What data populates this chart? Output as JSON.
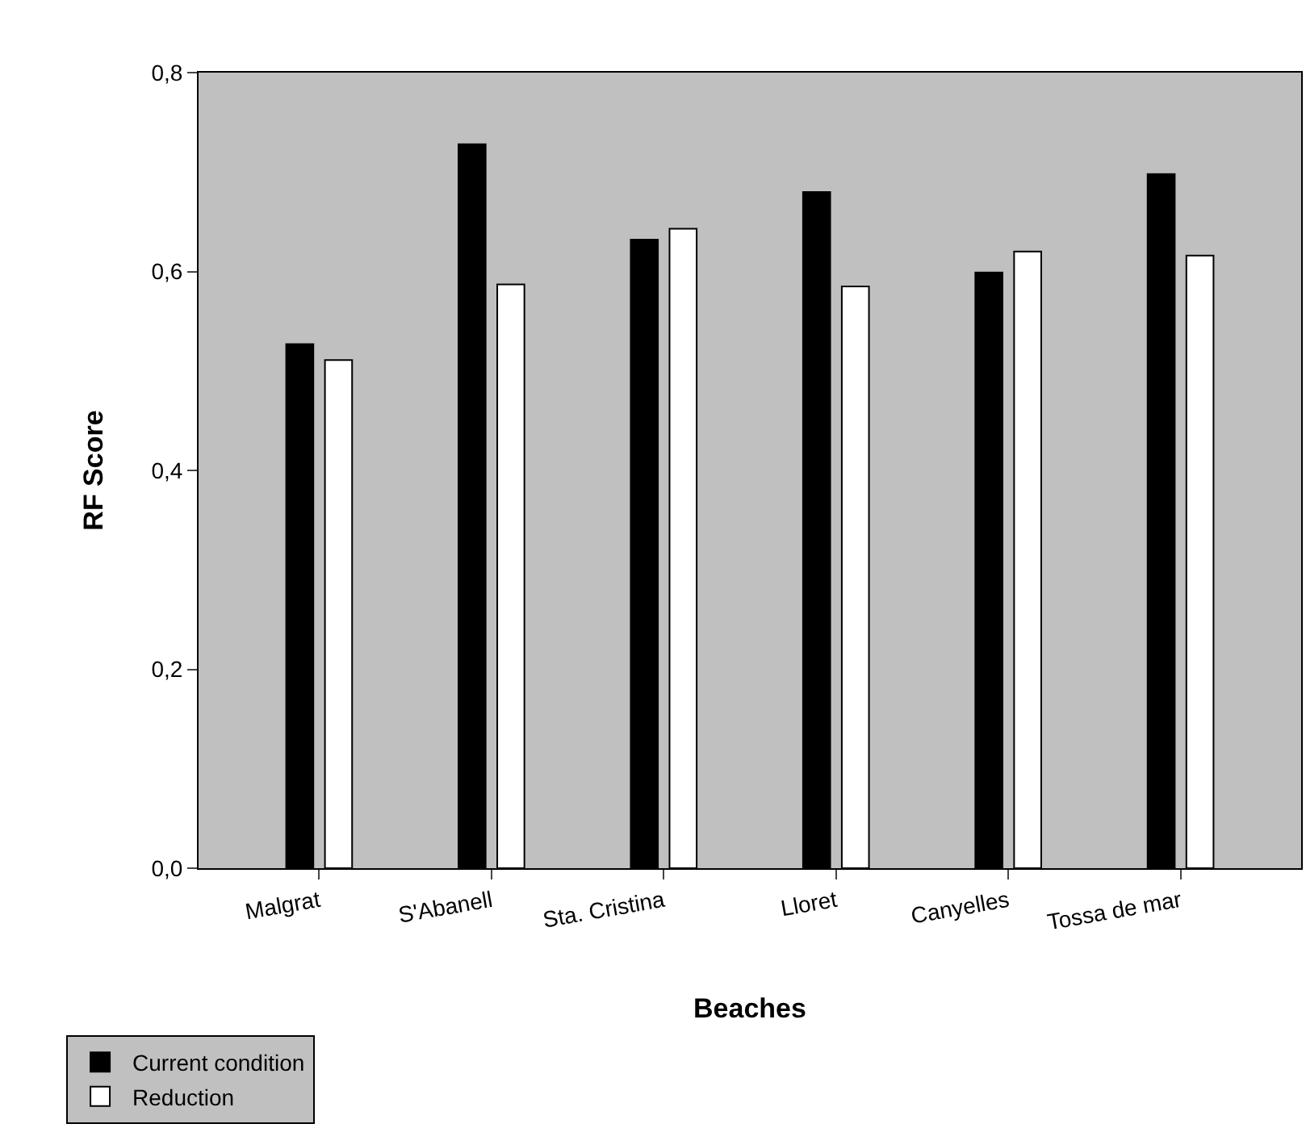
{
  "chart_data": {
    "type": "bar",
    "xlabel": "Beaches",
    "ylabel": "RF Score",
    "categories": [
      "Malgrat",
      "S'Abanell",
      "Sta. Cristina",
      "Lloret",
      "Canyelles",
      "Tossa de mar"
    ],
    "series": [
      {
        "name": "Current condition",
        "color": "#000000",
        "values": [
          0.527,
          0.728,
          0.632,
          0.68,
          0.599,
          0.698
        ]
      },
      {
        "name": "Reduction",
        "color": "#ffffff",
        "values": [
          0.511,
          0.587,
          0.643,
          0.585,
          0.62,
          0.616
        ]
      }
    ],
    "ylim": [
      0,
      0.8
    ],
    "yticks": [
      {
        "value": 0,
        "label": "0,0"
      },
      {
        "value": 0.2,
        "label": "0,2"
      },
      {
        "value": 0.4,
        "label": "0,4"
      },
      {
        "value": 0.6,
        "label": "0,6"
      },
      {
        "value": 0.8,
        "label": "0,8"
      }
    ],
    "grid": false,
    "legend": "bottom left"
  }
}
